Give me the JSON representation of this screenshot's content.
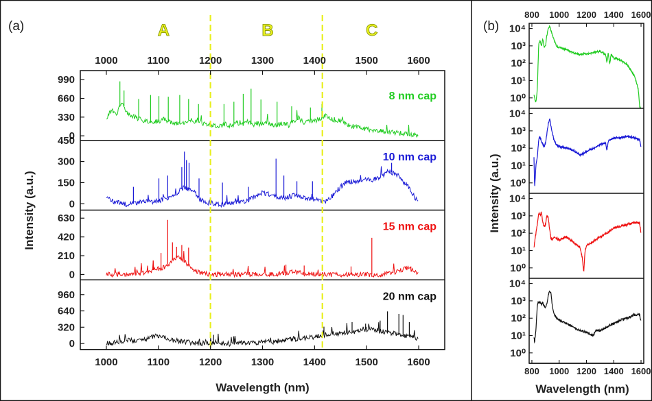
{
  "figure": {
    "panel_a_label": "(a)",
    "panel_b_label": "(b)"
  },
  "chart_data": [
    {
      "type": "line",
      "panel": "(a)",
      "xlabel": "Wavelength (nm)",
      "ylabel": "Intensity (a.u.)",
      "xlim": [
        950,
        1650
      ],
      "xticks": [
        "1000",
        "1100",
        "1200",
        "1300",
        "1400",
        "1500",
        "1600"
      ],
      "x_tick_values": [
        1000,
        1100,
        1200,
        1300,
        1400,
        1500,
        1600
      ],
      "x_axis_top_labels": true,
      "regions": {
        "labels": [
          "A",
          "B",
          "C"
        ],
        "centers": [
          1110,
          1310,
          1510
        ],
        "dividers": [
          1200,
          1415
        ],
        "color": "#e8ef1f"
      },
      "x": [
        1000,
        1010,
        1020,
        1030,
        1040,
        1050,
        1060,
        1070,
        1080,
        1090,
        1100,
        1110,
        1120,
        1130,
        1140,
        1150,
        1160,
        1170,
        1180,
        1190,
        1200,
        1210,
        1220,
        1230,
        1240,
        1250,
        1260,
        1270,
        1280,
        1290,
        1300,
        1310,
        1320,
        1330,
        1340,
        1350,
        1360,
        1370,
        1380,
        1390,
        1400,
        1410,
        1420,
        1430,
        1440,
        1450,
        1460,
        1470,
        1480,
        1490,
        1500,
        1510,
        1520,
        1530,
        1540,
        1550,
        1560,
        1570,
        1580,
        1590,
        1600
      ],
      "series": [
        {
          "name": "8 nm cap",
          "color": "#22cc22",
          "ylim": [
            -80,
            1150
          ],
          "yticks": [
            "0",
            "330",
            "660",
            "990"
          ],
          "ytick_values": [
            0,
            330,
            660,
            990
          ],
          "values": [
            320,
            450,
            380,
            600,
            400,
            350,
            300,
            280,
            260,
            240,
            260,
            290,
            250,
            230,
            210,
            240,
            280,
            260,
            250,
            200,
            190,
            180,
            170,
            210,
            160,
            230,
            180,
            260,
            190,
            220,
            200,
            240,
            200,
            190,
            230,
            180,
            270,
            320,
            210,
            280,
            260,
            300,
            350,
            310,
            280,
            260,
            220,
            180,
            150,
            140,
            120,
            100,
            90,
            80,
            70,
            60,
            50,
            40,
            30,
            20,
            10
          ],
          "spikes": [
            [
              1026,
              960
            ],
            [
              1034,
              800
            ],
            [
              1062,
              650
            ],
            [
              1085,
              720
            ],
            [
              1101,
              700
            ],
            [
              1119,
              690
            ],
            [
              1141,
              720
            ],
            [
              1158,
              650
            ],
            [
              1177,
              560
            ],
            [
              1226,
              560
            ],
            [
              1245,
              600
            ],
            [
              1263,
              740
            ],
            [
              1278,
              830
            ],
            [
              1297,
              640
            ],
            [
              1328,
              600
            ],
            [
              1356,
              520
            ],
            [
              1392,
              500
            ],
            [
              1414,
              560
            ]
          ]
        },
        {
          "name": "10 nm cap",
          "color": "#1a1ad6",
          "ylim": [
            -45,
            450
          ],
          "yticks": [
            "0",
            "150",
            "300",
            "450"
          ],
          "ytick_values": [
            0,
            150,
            300,
            450
          ],
          "values": [
            50,
            20,
            10,
            0,
            -5,
            0,
            10,
            20,
            15,
            10,
            20,
            30,
            40,
            60,
            90,
            120,
            100,
            80,
            30,
            10,
            5,
            0,
            -5,
            0,
            5,
            10,
            15,
            20,
            40,
            60,
            80,
            70,
            60,
            50,
            40,
            50,
            60,
            50,
            40,
            30,
            30,
            20,
            10,
            40,
            80,
            120,
            150,
            160,
            150,
            160,
            180,
            170,
            180,
            200,
            230,
            220,
            200,
            160,
            120,
            60,
            0
          ],
          "spikes": [
            [
              1052,
              120
            ],
            [
              1101,
              180
            ],
            [
              1118,
              200
            ],
            [
              1145,
              260
            ],
            [
              1150,
              370
            ],
            [
              1154,
              310
            ],
            [
              1159,
              290
            ],
            [
              1178,
              180
            ],
            [
              1223,
              150
            ],
            [
              1273,
              120
            ],
            [
              1326,
              320
            ],
            [
              1341,
              200
            ],
            [
              1366,
              160
            ],
            [
              1396,
              160
            ],
            [
              1548,
              290
            ]
          ]
        },
        {
          "name": "15 nm cap",
          "color": "#ee1111",
          "ylim": [
            -60,
            720
          ],
          "yticks": [
            "0",
            "210",
            "420",
            "630"
          ],
          "ytick_values": [
            0,
            210,
            420,
            630
          ],
          "values": [
            0,
            0,
            0,
            0,
            0,
            5,
            10,
            20,
            30,
            50,
            60,
            80,
            120,
            180,
            200,
            150,
            90,
            50,
            20,
            10,
            5,
            0,
            0,
            0,
            0,
            0,
            0,
            0,
            0,
            0,
            0,
            0,
            0,
            5,
            10,
            20,
            30,
            20,
            10,
            5,
            0,
            0,
            0,
            0,
            0,
            0,
            0,
            0,
            0,
            0,
            0,
            0,
            0,
            0,
            10,
            20,
            30,
            60,
            80,
            40,
            0
          ],
          "spikes": [
            [
              1090,
              150
            ],
            [
              1105,
              240
            ],
            [
              1118,
              610
            ],
            [
              1127,
              360
            ],
            [
              1135,
              310
            ],
            [
              1145,
              330
            ],
            [
              1158,
              300
            ],
            [
              1345,
              110
            ],
            [
              1380,
              100
            ],
            [
              1470,
              90
            ],
            [
              1510,
              410
            ],
            [
              1585,
              90
            ]
          ]
        },
        {
          "name": "20 nm cap",
          "color": "#111111",
          "ylim": [
            -120,
            1250
          ],
          "yticks": [
            "0",
            "320",
            "640",
            "960"
          ],
          "ytick_values": [
            0,
            320,
            640,
            960
          ],
          "values": [
            0,
            10,
            20,
            50,
            80,
            60,
            40,
            60,
            100,
            140,
            160,
            120,
            80,
            60,
            40,
            30,
            20,
            10,
            0,
            10,
            20,
            20,
            10,
            0,
            -10,
            0,
            10,
            0,
            10,
            20,
            30,
            40,
            30,
            50,
            60,
            70,
            80,
            90,
            100,
            110,
            130,
            150,
            170,
            180,
            190,
            200,
            210,
            220,
            230,
            260,
            280,
            270,
            260,
            240,
            220,
            200,
            180,
            160,
            140,
            120,
            100
          ],
          "spikes": [
            [
              1098,
              160
            ],
            [
              1206,
              170
            ],
            [
              1418,
              330
            ],
            [
              1472,
              420
            ],
            [
              1498,
              390
            ],
            [
              1526,
              450
            ],
            [
              1540,
              630
            ],
            [
              1562,
              580
            ],
            [
              1570,
              560
            ],
            [
              1582,
              420
            ]
          ]
        }
      ]
    },
    {
      "type": "line",
      "panel": "(b)",
      "xlabel": "Wavelength (nm)",
      "ylabel": "Intensity (a.u.)",
      "xlim": [
        780,
        1620
      ],
      "xticks": [
        "800",
        "1000",
        "1200",
        "1400",
        "1600"
      ],
      "x_tick_values": [
        800,
        1000,
        1200,
        1400,
        1600
      ],
      "x_axis_top_labels": true,
      "y_scale": "log",
      "ylim_log10": [
        -0.6,
        4.3
      ],
      "yticks": [
        "10⁰",
        "10¹",
        "10²",
        "10³",
        "10⁴"
      ],
      "ytick_exponents": [
        0,
        1,
        2,
        3,
        4
      ],
      "series": [
        {
          "name": "8 nm cap",
          "color": "#22cc22",
          "x": [
            815,
            830,
            840,
            850,
            860,
            870,
            880,
            890,
            900,
            910,
            920,
            930,
            940,
            960,
            980,
            1000,
            1050,
            1100,
            1150,
            1200,
            1250,
            1300,
            1340,
            1350,
            1360,
            1370,
            1380,
            1400,
            1450,
            1500,
            1550,
            1580,
            1590,
            1600
          ],
          "log10": [
            0.2,
            -0.3,
            0.5,
            3.1,
            3.3,
            3.0,
            3.4,
            2.9,
            3.0,
            3.6,
            4.0,
            4.15,
            3.9,
            3.4,
            3.0,
            2.9,
            2.8,
            2.6,
            2.5,
            2.55,
            2.6,
            2.7,
            2.5,
            2.0,
            2.6,
            1.9,
            2.5,
            2.3,
            2.2,
            1.9,
            1.3,
            0.5,
            -0.5,
            -0.6
          ]
        },
        {
          "name": "10 nm cap",
          "color": "#1a1ad6",
          "x": [
            815,
            820,
            830,
            840,
            850,
            860,
            870,
            880,
            890,
            900,
            910,
            920,
            930,
            940,
            960,
            980,
            1000,
            1050,
            1100,
            1150,
            1180,
            1200,
            1250,
            1300,
            1340,
            1350,
            1360,
            1380,
            1400,
            1450,
            1500,
            1550,
            1590,
            1600
          ],
          "log10": [
            1.5,
            -0.3,
            1.0,
            1.5,
            2.5,
            2.7,
            2.4,
            2.2,
            2.1,
            2.3,
            2.8,
            3.4,
            3.7,
            3.3,
            2.5,
            2.2,
            2.1,
            2.0,
            1.9,
            1.6,
            1.7,
            1.8,
            2.0,
            2.2,
            2.3,
            1.9,
            2.4,
            2.5,
            2.6,
            2.6,
            2.7,
            2.6,
            2.5,
            2.0
          ]
        },
        {
          "name": "15 nm cap",
          "color": "#ee1111",
          "x": [
            815,
            830,
            840,
            850,
            860,
            870,
            880,
            890,
            900,
            910,
            920,
            930,
            940,
            950,
            960,
            980,
            1000,
            1050,
            1100,
            1150,
            1170,
            1180,
            1190,
            1200,
            1250,
            1300,
            1350,
            1400,
            1450,
            1500,
            1550,
            1590,
            1600
          ],
          "log10": [
            1.2,
            2.0,
            2.5,
            3.2,
            3.0,
            3.2,
            2.6,
            2.4,
            2.5,
            3.0,
            2.9,
            2.2,
            1.7,
            1.6,
            1.8,
            1.7,
            1.6,
            1.8,
            1.5,
            1.2,
            0.6,
            -0.3,
            1.0,
            1.3,
            1.5,
            1.8,
            2.0,
            2.3,
            2.4,
            2.5,
            2.6,
            2.6,
            2.0
          ]
        },
        {
          "name": "20 nm cap",
          "color": "#111111",
          "x": [
            815,
            820,
            830,
            840,
            850,
            860,
            870,
            880,
            890,
            900,
            910,
            920,
            930,
            940,
            950,
            960,
            980,
            1000,
            1050,
            1100,
            1150,
            1200,
            1250,
            1270,
            1300,
            1350,
            1400,
            1450,
            1500,
            1550,
            1590,
            1600
          ],
          "log10": [
            0.9,
            0.6,
            1.3,
            2.8,
            2.9,
            2.9,
            2.8,
            2.9,
            2.7,
            2.6,
            2.8,
            3.3,
            3.6,
            3.4,
            2.7,
            2.3,
            2.0,
            1.9,
            1.7,
            1.5,
            1.3,
            1.2,
            1.0,
            1.3,
            1.3,
            1.5,
            1.7,
            1.9,
            2.0,
            2.2,
            2.2,
            1.8
          ]
        }
      ]
    }
  ]
}
